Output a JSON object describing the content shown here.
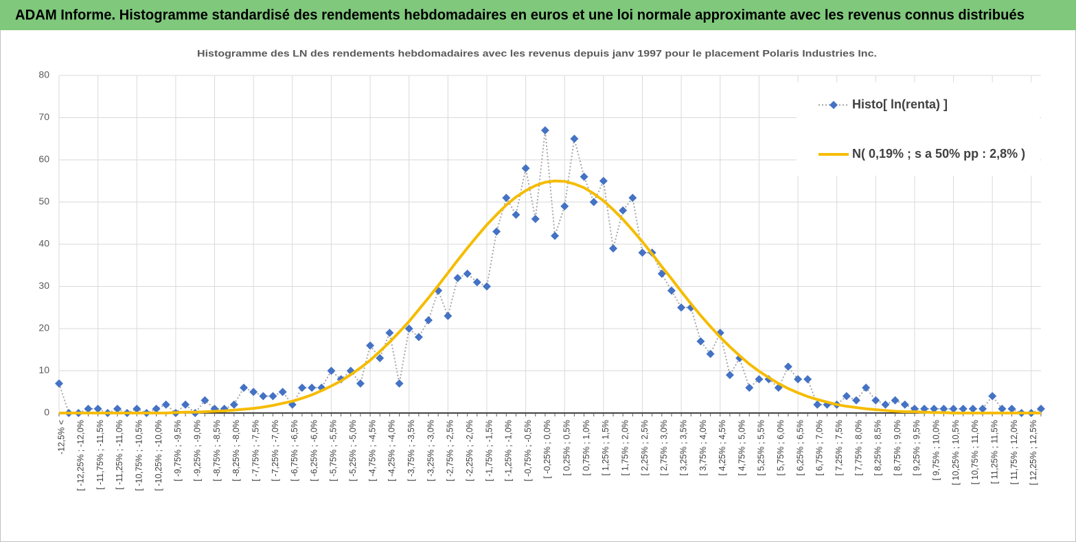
{
  "header": {
    "title": "ADAM Informe. Histogramme standardisé des rendements hebdomadaires en euros et une loi normale approximante avec les revenus connus distribués"
  },
  "chart_data": {
    "type": "line",
    "title": "Histogramme des LN des rendements hebdomadaires avec les revenus depuis janv 1997 pour le placement Polaris Industries Inc.",
    "categories": [
      "-12,5% <",
      null,
      "[ -12,25% ; -12,0%",
      null,
      "[ -11,75% ; -11,5%",
      null,
      "[ -11,25% ; -11,0%",
      null,
      "[ -10,75% ; -10,5%",
      null,
      "[ -10,25% ; -10,0%",
      null,
      "[ -9,75% ; -9,5%",
      null,
      "[ -9,25% ; -9,0%",
      null,
      "[ -8,75% ; -8,5%",
      null,
      "[ -8,25% ; -8,0%",
      null,
      "[ -7,75% ; -7,5%",
      null,
      "[ -7,25% ; -7,0%",
      null,
      "[ -6,75% ; -6,5%",
      null,
      "[ -6,25% ; -6,0%",
      null,
      "[ -5,75% ; -5,5%",
      null,
      "[ -5,25% ; -5,0%",
      null,
      "[ -4,75% ; -4,5%",
      null,
      "[ -4,25% ; -4,0%",
      null,
      "[ -3,75% ; -3,5%",
      null,
      "[ -3,25% ; -3,0%",
      null,
      "[ -2,75% ; -2,5%",
      null,
      "[ -2,25% ; -2,0%",
      null,
      "[ -1,75% ; -1,5%",
      null,
      "[ -1,25% ; -1,0%",
      null,
      "[ -0,75% ; -0,5%",
      null,
      "[ -0,25% ; 0,0%",
      null,
      "[ 0,25% ; 0,5%",
      null,
      "[ 0,75% ; 1,0%",
      null,
      "[ 1,25% ; 1,5%",
      null,
      "[ 1,75% ; 2,0%",
      null,
      "[ 2,25% ; 2,5%",
      null,
      "[ 2,75% ; 3,0%",
      null,
      "[ 3,25% ; 3,5%",
      null,
      "[ 3,75% ; 4,0%",
      null,
      "[ 4,25% ; 4,5%",
      null,
      "[ 4,75% ; 5,0%",
      null,
      "[ 5,25% ; 5,5%",
      null,
      "[ 5,75% ; 6,0%",
      null,
      "[ 6,25% ; 6,5%",
      null,
      "[ 6,75% ; 7,0%",
      null,
      "[ 7,25% ; 7,5%",
      null,
      "[ 7,75% ; 8,0%",
      null,
      "[ 8,25% ; 8,5%",
      null,
      "[ 8,75% ; 9,0%",
      null,
      "[ 9,25% ; 9,5%",
      null,
      "[ 9,75% ; 10,0%",
      null,
      "[ 10,25% ; 10,5%",
      null,
      "[ 10,75% ; 11,0%",
      null,
      "[ 11,25% ; 11,5%",
      null,
      "[ 11,75% ; 12,0%",
      null,
      "[ 12,25% ; 12,5%",
      null
    ],
    "series": [
      {
        "name": "Histo[ ln(renta) ]",
        "color": "#4472c4",
        "line_color": "#a5a5a5",
        "marker": "diamond",
        "line_style": "dotted",
        "values": [
          7,
          0,
          0,
          1,
          1,
          0,
          1,
          0,
          1,
          0,
          1,
          2,
          0,
          2,
          0,
          3,
          1,
          1,
          2,
          6,
          5,
          4,
          4,
          5,
          2,
          6,
          6,
          6,
          10,
          8,
          10,
          7,
          16,
          13,
          19,
          7,
          20,
          18,
          22,
          29,
          23,
          32,
          33,
          31,
          30,
          43,
          51,
          47,
          58,
          46,
          67,
          42,
          49,
          65,
          56,
          50,
          55,
          39,
          48,
          51,
          38,
          38,
          33,
          29,
          25,
          25,
          17,
          14,
          19,
          9,
          13,
          6,
          8,
          8,
          6,
          11,
          8,
          8,
          2,
          2,
          2,
          4,
          3,
          6,
          3,
          2,
          3,
          2,
          1,
          1,
          1,
          1,
          1,
          1,
          1,
          1,
          4,
          1,
          1,
          0,
          0,
          1
        ]
      },
      {
        "name": "N( 0,19% ; s a 50% pp : 2,8% )",
        "color": "#f5bc00",
        "marker": "none",
        "line_style": "solid",
        "values": [
          0,
          0,
          0,
          0,
          0,
          0,
          0,
          0,
          0,
          0,
          0,
          0,
          0.1,
          0.2,
          0.2,
          0.3,
          0.4,
          0.5,
          0.7,
          0.9,
          1.1,
          1.4,
          1.8,
          2.3,
          2.8,
          3.5,
          4.3,
          5.3,
          6.4,
          7.6,
          9.1,
          10.7,
          12.5,
          14.6,
          16.8,
          19.2,
          21.7,
          24.5,
          27.3,
          30.2,
          33.2,
          36.2,
          39.1,
          41.9,
          44.6,
          47.0,
          49.3,
          51.2,
          52.7,
          53.9,
          54.7,
          55.0,
          54.9,
          54.3,
          53.4,
          52.0,
          50.3,
          48.2,
          45.9,
          43.3,
          40.6,
          37.7,
          34.7,
          31.8,
          28.8,
          25.9,
          23.1,
          20.5,
          18.0,
          15.7,
          13.6,
          11.6,
          9.9,
          8.4,
          7.0,
          5.8,
          4.8,
          3.9,
          3.2,
          2.6,
          2.0,
          1.6,
          1.3,
          1.0,
          0.8,
          0.6,
          0.4,
          0.3,
          0.3,
          0.2,
          0.1,
          0.1,
          0,
          0,
          0,
          0,
          0,
          0,
          0,
          0,
          0,
          0
        ]
      }
    ],
    "ylim": [
      0,
      80
    ],
    "yticks": [
      0,
      10,
      20,
      30,
      40,
      50,
      60,
      70,
      80
    ],
    "grid": true,
    "legend": "upper right"
  }
}
